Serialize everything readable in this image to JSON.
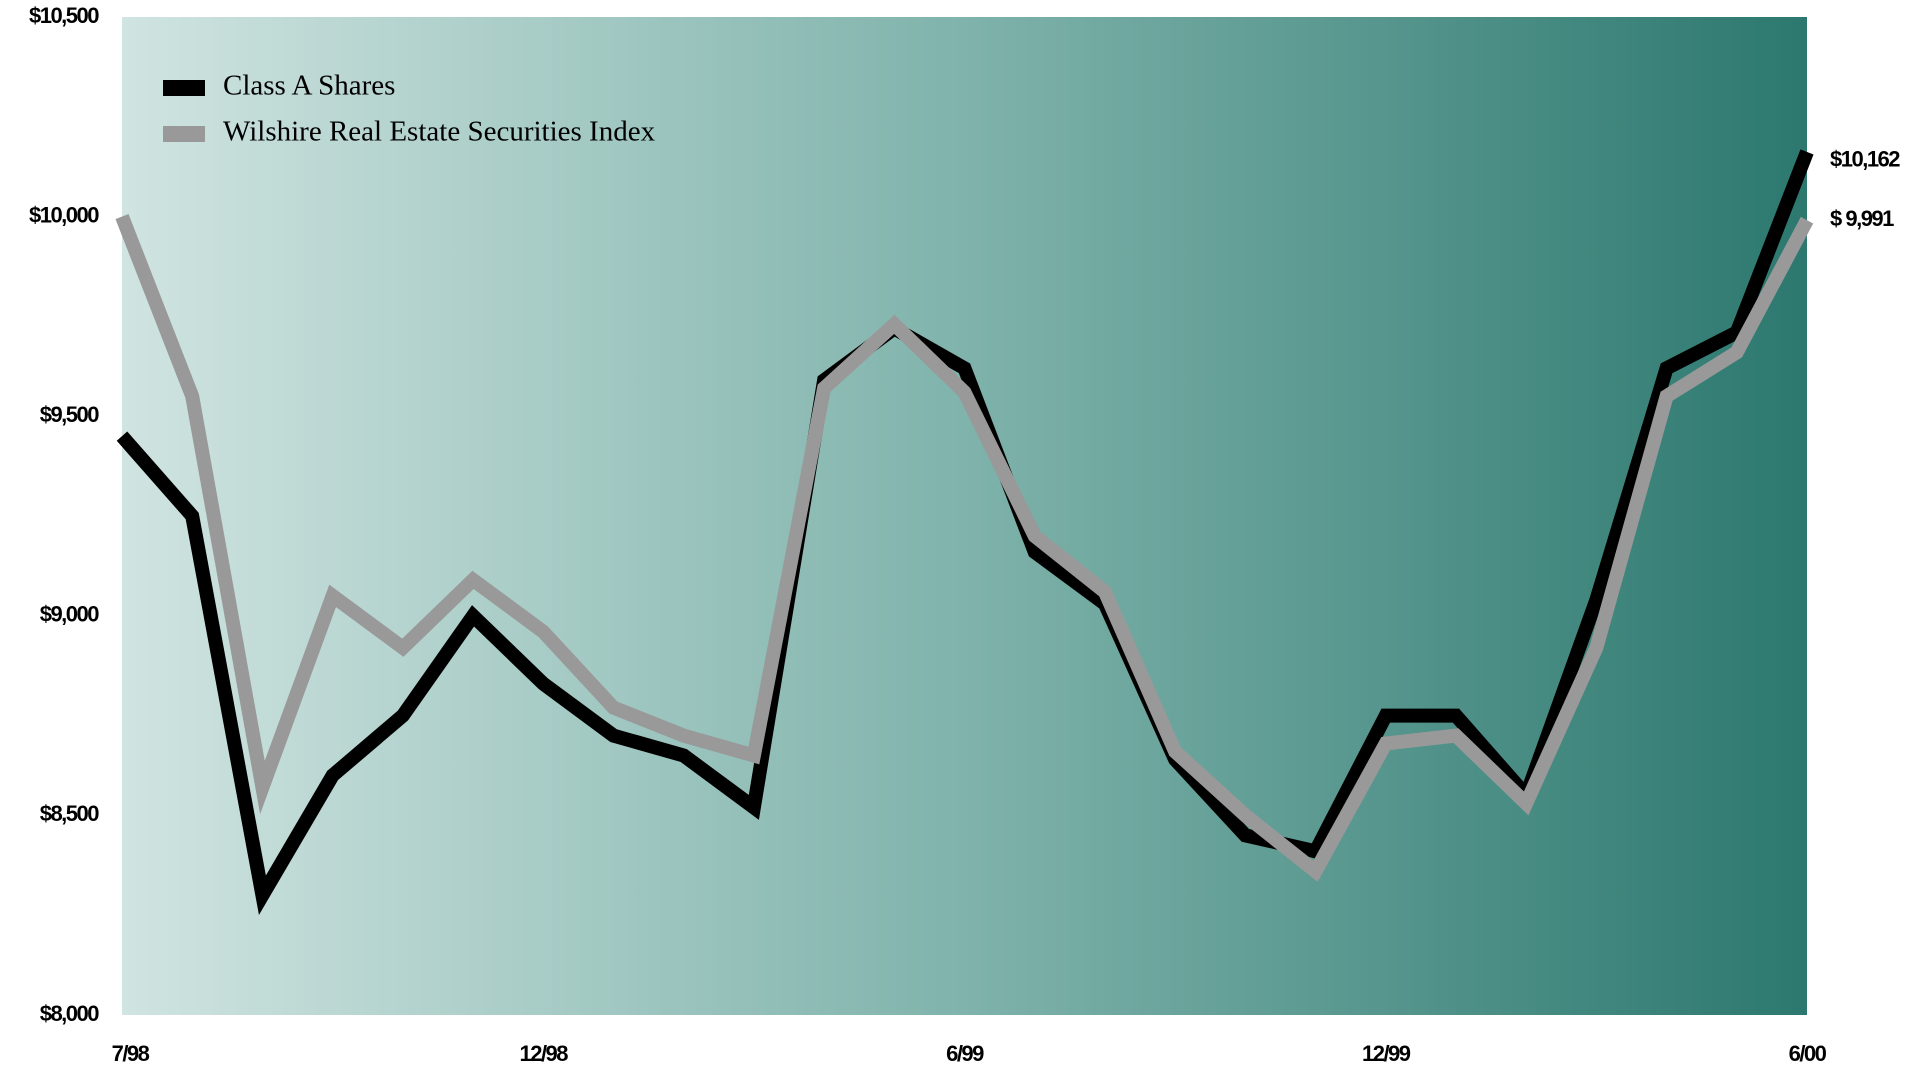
{
  "chart_data": {
    "type": "line",
    "categories": [
      "7/98",
      null,
      null,
      null,
      null,
      null,
      "12/98",
      null,
      null,
      null,
      null,
      null,
      "6/99",
      null,
      null,
      null,
      null,
      null,
      "12/99",
      null,
      null,
      null,
      null,
      null,
      "6/00"
    ],
    "series": [
      {
        "name": "Class A Shares",
        "color": "#000000",
        "values": [
          9450,
          9250,
          8300,
          8600,
          8750,
          9000,
          8830,
          8700,
          8650,
          8520,
          9590,
          9720,
          9620,
          9160,
          9030,
          8640,
          8450,
          8410,
          8750,
          8750,
          8550,
          9040,
          9620,
          9710,
          10162
        ],
        "value_labels": [
          null,
          null,
          null,
          null,
          null,
          null,
          null,
          null,
          null,
          null,
          null,
          null,
          null,
          null,
          null,
          null,
          null,
          null,
          null,
          null,
          null,
          null,
          null,
          null,
          "$10,162"
        ]
      },
      {
        "name": "Wilshire Real Estate Securities Index",
        "color": "#999999",
        "values": [
          10000,
          9550,
          8570,
          9050,
          8920,
          9090,
          8960,
          8770,
          8700,
          8650,
          9570,
          9730,
          9560,
          9200,
          9060,
          8660,
          8500,
          8360,
          8680,
          8700,
          8530,
          8920,
          9550,
          9660,
          9991
        ],
        "value_labels": [
          null,
          null,
          null,
          null,
          null,
          null,
          null,
          null,
          null,
          null,
          null,
          null,
          null,
          null,
          null,
          null,
          null,
          null,
          null,
          null,
          null,
          null,
          null,
          null,
          "$ 9,991"
        ]
      }
    ],
    "ylim": [
      8000,
      10500
    ],
    "yticks": [
      {
        "value": 8000,
        "label": "$8,000"
      },
      {
        "value": 8500,
        "label": "$8,500"
      },
      {
        "value": 9000,
        "label": "$9,000"
      },
      {
        "value": 9500,
        "label": "$9,500"
      },
      {
        "value": 10000,
        "label": "$10,000"
      },
      {
        "value": 10500,
        "label": "$10,500"
      }
    ],
    "legend": "top-left"
  }
}
